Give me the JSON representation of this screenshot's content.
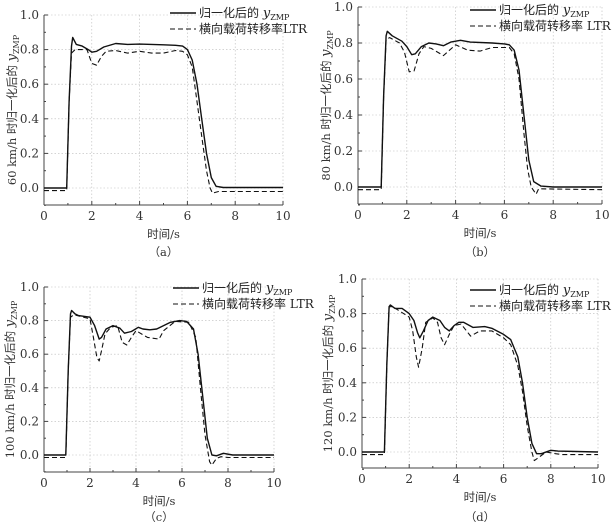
{
  "chart_data": [
    {
      "type": "line",
      "panel": "（a）",
      "xlabel": "时间/s",
      "ylabel": "60 km/h 时归一化后的 ",
      "ylabel_var": "y",
      "ylabel_sub": "ZMP",
      "xlim": [
        0,
        10
      ],
      "ylim": [
        -0.1,
        1.0
      ],
      "xticks": [
        "0",
        "2",
        "4",
        "6",
        "8",
        "10"
      ],
      "yticks": [
        "0.0",
        "0.2",
        "0.4",
        "0.6",
        "0.8",
        "1.0"
      ],
      "grid": true,
      "legend": "top-right",
      "series": [
        {
          "name": "归一化后的 ",
          "name_var": "y",
          "name_sub": "ZMP",
          "style": "solid",
          "points": [
            [
              0,
              0
            ],
            [
              0.95,
              0
            ],
            [
              1.05,
              0.5
            ],
            [
              1.15,
              0.82
            ],
            [
              1.2,
              0.87
            ],
            [
              1.35,
              0.83
            ],
            [
              1.6,
              0.82
            ],
            [
              1.85,
              0.8
            ],
            [
              2.0,
              0.785
            ],
            [
              2.2,
              0.79
            ],
            [
              2.5,
              0.815
            ],
            [
              3,
              0.835
            ],
            [
              3.5,
              0.83
            ],
            [
              4,
              0.832
            ],
            [
              5,
              0.828
            ],
            [
              5.5,
              0.825
            ],
            [
              5.8,
              0.82
            ],
            [
              6,
              0.8
            ],
            [
              6.2,
              0.74
            ],
            [
              6.4,
              0.6
            ],
            [
              6.6,
              0.4
            ],
            [
              6.8,
              0.2
            ],
            [
              7.0,
              0.06
            ],
            [
              7.2,
              0.01
            ],
            [
              7.5,
              0.003
            ],
            [
              10,
              0.003
            ]
          ]
        },
        {
          "name": "横向载荷转移率LTR",
          "style": "dashed",
          "points": [
            [
              0,
              -0.015
            ],
            [
              0.95,
              -0.015
            ],
            [
              1.05,
              0.5
            ],
            [
              1.15,
              0.78
            ],
            [
              1.3,
              0.8
            ],
            [
              1.8,
              0.8
            ],
            [
              2.0,
              0.72
            ],
            [
              2.2,
              0.71
            ],
            [
              2.4,
              0.76
            ],
            [
              2.6,
              0.79
            ],
            [
              3,
              0.795
            ],
            [
              3.5,
              0.78
            ],
            [
              4,
              0.79
            ],
            [
              4.5,
              0.78
            ],
            [
              5,
              0.78
            ],
            [
              5.5,
              0.795
            ],
            [
              5.8,
              0.79
            ],
            [
              6.0,
              0.77
            ],
            [
              6.2,
              0.7
            ],
            [
              6.4,
              0.5
            ],
            [
              6.6,
              0.3
            ],
            [
              6.8,
              0.1
            ],
            [
              6.95,
              0.0
            ],
            [
              7.05,
              -0.03
            ],
            [
              7.3,
              -0.02
            ],
            [
              10,
              -0.02
            ]
          ]
        }
      ]
    },
    {
      "type": "line",
      "panel": "（b）",
      "xlabel": "时间/s",
      "ylabel": "80 km/h 时归一化后的 ",
      "ylabel_var": "y",
      "ylabel_sub": "ZMP",
      "xlim": [
        0,
        10
      ],
      "ylim": [
        -0.1,
        1.0
      ],
      "xticks": [
        "0",
        "2",
        "4",
        "6",
        "8",
        "10"
      ],
      "yticks": [
        "0.0",
        "0.2",
        "0.4",
        "0.6",
        "0.8",
        "1.0"
      ],
      "grid": true,
      "legend": "top-right",
      "series": [
        {
          "name": "归一化后的 ",
          "name_var": "y",
          "name_sub": "ZMP",
          "style": "solid",
          "points": [
            [
              0,
              0
            ],
            [
              0.95,
              0
            ],
            [
              1.05,
              0.5
            ],
            [
              1.15,
              0.84
            ],
            [
              1.2,
              0.865
            ],
            [
              1.4,
              0.84
            ],
            [
              1.8,
              0.81
            ],
            [
              2.0,
              0.78
            ],
            [
              2.2,
              0.735
            ],
            [
              2.35,
              0.74
            ],
            [
              2.6,
              0.78
            ],
            [
              2.9,
              0.8
            ],
            [
              3.2,
              0.795
            ],
            [
              3.5,
              0.785
            ],
            [
              3.8,
              0.805
            ],
            [
              4.2,
              0.815
            ],
            [
              4.6,
              0.805
            ],
            [
              5.5,
              0.8
            ],
            [
              6.0,
              0.795
            ],
            [
              6.2,
              0.79
            ],
            [
              6.4,
              0.76
            ],
            [
              6.6,
              0.65
            ],
            [
              6.8,
              0.4
            ],
            [
              7.0,
              0.15
            ],
            [
              7.2,
              0.03
            ],
            [
              7.5,
              0.005
            ],
            [
              8,
              0
            ],
            [
              10,
              0
            ]
          ]
        },
        {
          "name": "横向载荷转移率 LTR",
          "style": "dashed",
          "points": [
            [
              0,
              -0.015
            ],
            [
              0.95,
              -0.015
            ],
            [
              1.05,
              0.5
            ],
            [
              1.15,
              0.82
            ],
            [
              1.3,
              0.83
            ],
            [
              1.7,
              0.8
            ],
            [
              1.9,
              0.75
            ],
            [
              2.1,
              0.64
            ],
            [
              2.3,
              0.645
            ],
            [
              2.5,
              0.74
            ],
            [
              2.7,
              0.78
            ],
            [
              3,
              0.77
            ],
            [
              3.5,
              0.73
            ],
            [
              4,
              0.79
            ],
            [
              4.5,
              0.76
            ],
            [
              5,
              0.755
            ],
            [
              5.5,
              0.775
            ],
            [
              6.2,
              0.775
            ],
            [
              6.4,
              0.74
            ],
            [
              6.6,
              0.6
            ],
            [
              6.8,
              0.3
            ],
            [
              6.95,
              0.1
            ],
            [
              7.1,
              0.0
            ],
            [
              7.3,
              -0.04
            ],
            [
              7.4,
              -0.01
            ],
            [
              10,
              -0.015
            ]
          ]
        }
      ]
    },
    {
      "type": "line",
      "panel": "（c）",
      "xlabel": "时间/s",
      "ylabel": "100 km/h 时归一化后的 ",
      "ylabel_var": "y",
      "ylabel_sub": "ZMP",
      "xlim": [
        0,
        10
      ],
      "ylim": [
        -0.1,
        1.0
      ],
      "xticks": [
        "0",
        "2",
        "4",
        "6",
        "8",
        "10"
      ],
      "yticks": [
        "0.0",
        "0.2",
        "0.4",
        "0.6",
        "0.8",
        "1.0"
      ],
      "grid": true,
      "legend": "top-right",
      "series": [
        {
          "name": "归一化后的 ",
          "name_var": "y",
          "name_sub": "ZMP",
          "style": "solid",
          "points": [
            [
              0,
              0
            ],
            [
              0.95,
              0
            ],
            [
              1.05,
              0.5
            ],
            [
              1.15,
              0.84
            ],
            [
              1.2,
              0.86
            ],
            [
              1.35,
              0.84
            ],
            [
              1.5,
              0.83
            ],
            [
              2.0,
              0.82
            ],
            [
              2.2,
              0.77
            ],
            [
              2.4,
              0.69
            ],
            [
              2.5,
              0.7
            ],
            [
              2.7,
              0.75
            ],
            [
              3.0,
              0.77
            ],
            [
              3.3,
              0.755
            ],
            [
              3.5,
              0.725
            ],
            [
              3.8,
              0.735
            ],
            [
              4.1,
              0.76
            ],
            [
              4.3,
              0.75
            ],
            [
              4.6,
              0.745
            ],
            [
              4.9,
              0.75
            ],
            [
              5.2,
              0.77
            ],
            [
              5.5,
              0.79
            ],
            [
              5.9,
              0.8
            ],
            [
              6.2,
              0.795
            ],
            [
              6.5,
              0.75
            ],
            [
              6.7,
              0.6
            ],
            [
              6.9,
              0.35
            ],
            [
              7.1,
              0.1
            ],
            [
              7.3,
              0
            ],
            [
              7.5,
              -0.005
            ],
            [
              7.8,
              0.01
            ],
            [
              8.2,
              0
            ],
            [
              10,
              0
            ]
          ]
        },
        {
          "name": "横向载荷转移率 LTR",
          "style": "dashed",
          "points": [
            [
              0,
              -0.015
            ],
            [
              0.95,
              -0.015
            ],
            [
              1.05,
              0.5
            ],
            [
              1.15,
              0.82
            ],
            [
              1.3,
              0.835
            ],
            [
              2.0,
              0.81
            ],
            [
              2.15,
              0.7
            ],
            [
              2.3,
              0.58
            ],
            [
              2.4,
              0.56
            ],
            [
              2.5,
              0.62
            ],
            [
              2.65,
              0.72
            ],
            [
              2.9,
              0.76
            ],
            [
              3.2,
              0.77
            ],
            [
              3.4,
              0.67
            ],
            [
              3.6,
              0.655
            ],
            [
              3.8,
              0.7
            ],
            [
              4.0,
              0.74
            ],
            [
              4.5,
              0.7
            ],
            [
              5.0,
              0.69
            ],
            [
              5.2,
              0.74
            ],
            [
              5.7,
              0.795
            ],
            [
              6.3,
              0.79
            ],
            [
              6.6,
              0.7
            ],
            [
              6.8,
              0.4
            ],
            [
              7.0,
              0.12
            ],
            [
              7.2,
              -0.04
            ],
            [
              7.3,
              -0.06
            ],
            [
              7.5,
              -0.02
            ],
            [
              7.7,
              -0.01
            ],
            [
              8.0,
              -0.015
            ],
            [
              10,
              -0.015
            ]
          ]
        }
      ]
    },
    {
      "type": "line",
      "panel": "（d）",
      "xlabel": "时间/s",
      "ylabel": "120 km/h 时归一化后的 ",
      "ylabel_var": "y",
      "ylabel_sub": "ZMP",
      "xlim": [
        0,
        10
      ],
      "ylim": [
        -0.1,
        1.0
      ],
      "xticks": [
        "0",
        "2",
        "4",
        "6",
        "8",
        "10"
      ],
      "yticks": [
        "0.0",
        "0.2",
        "0.4",
        "0.6",
        "0.8",
        "1.0"
      ],
      "grid": true,
      "legend": "top-right",
      "series": [
        {
          "name": "归一化后的 ",
          "name_var": "y",
          "name_sub": "ZMP",
          "style": "solid",
          "points": [
            [
              0,
              0
            ],
            [
              0.95,
              0
            ],
            [
              1.05,
              0.5
            ],
            [
              1.15,
              0.84
            ],
            [
              1.2,
              0.85
            ],
            [
              1.4,
              0.83
            ],
            [
              1.7,
              0.83
            ],
            [
              2.0,
              0.8
            ],
            [
              2.2,
              0.76
            ],
            [
              2.35,
              0.69
            ],
            [
              2.45,
              0.66
            ],
            [
              2.6,
              0.7
            ],
            [
              2.8,
              0.76
            ],
            [
              3.0,
              0.78
            ],
            [
              3.3,
              0.76
            ],
            [
              3.5,
              0.72
            ],
            [
              3.7,
              0.7
            ],
            [
              3.9,
              0.73
            ],
            [
              4.1,
              0.75
            ],
            [
              4.3,
              0.75
            ],
            [
              4.7,
              0.72
            ],
            [
              5.2,
              0.725
            ],
            [
              5.5,
              0.715
            ],
            [
              6.0,
              0.68
            ],
            [
              6.3,
              0.65
            ],
            [
              6.6,
              0.55
            ],
            [
              6.8,
              0.4
            ],
            [
              7.0,
              0.2
            ],
            [
              7.2,
              0.05
            ],
            [
              7.4,
              -0.01
            ],
            [
              7.6,
              -0.01
            ],
            [
              8.0,
              0.01
            ],
            [
              8.3,
              0.005
            ],
            [
              10,
              0
            ]
          ]
        },
        {
          "name": "横向载荷转移率 LTR",
          "style": "dashed",
          "points": [
            [
              0,
              -0.015
            ],
            [
              0.95,
              -0.015
            ],
            [
              1.05,
              0.5
            ],
            [
              1.15,
              0.84
            ],
            [
              1.3,
              0.84
            ],
            [
              2.0,
              0.78
            ],
            [
              2.15,
              0.7
            ],
            [
              2.3,
              0.55
            ],
            [
              2.4,
              0.49
            ],
            [
              2.55,
              0.6
            ],
            [
              2.7,
              0.75
            ],
            [
              3.0,
              0.775
            ],
            [
              3.2,
              0.75
            ],
            [
              3.35,
              0.66
            ],
            [
              3.5,
              0.62
            ],
            [
              3.7,
              0.68
            ],
            [
              3.9,
              0.73
            ],
            [
              4.2,
              0.74
            ],
            [
              4.6,
              0.67
            ],
            [
              5.0,
              0.7
            ],
            [
              5.5,
              0.7
            ],
            [
              6.0,
              0.66
            ],
            [
              6.3,
              0.62
            ],
            [
              6.6,
              0.5
            ],
            [
              6.8,
              0.35
            ],
            [
              7.0,
              0.15
            ],
            [
              7.2,
              0
            ],
            [
              7.3,
              -0.05
            ],
            [
              7.5,
              -0.03
            ],
            [
              7.8,
              0
            ],
            [
              8.2,
              -0.01
            ],
            [
              8.5,
              -0.015
            ],
            [
              10,
              -0.015
            ]
          ]
        }
      ]
    }
  ]
}
